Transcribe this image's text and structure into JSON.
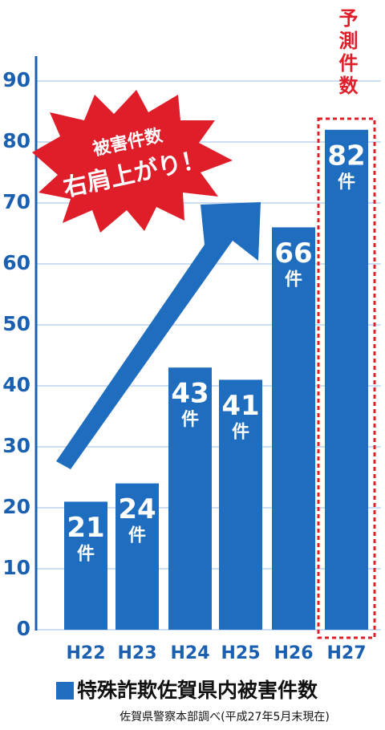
{
  "chart_data": {
    "type": "bar",
    "title": "特殊詐欺佐賀県内被害件数",
    "source": "佐賀県警察本部調べ(平成27年5月末現在)",
    "categories": [
      "H22",
      "H23",
      "H24",
      "H25",
      "H26",
      "H27"
    ],
    "values": [
      21,
      24,
      43,
      41,
      66,
      82
    ],
    "unit_label": "件",
    "color": "#1f6dbf",
    "ylim": [
      0,
      90
    ],
    "yticks": [
      0,
      10,
      20,
      30,
      40,
      50,
      60,
      70,
      80,
      90
    ],
    "grid": true,
    "annotations": {
      "forecast": "予測件数",
      "burst_line1": "被害件数",
      "burst_line2": "右肩上がり！"
    }
  }
}
